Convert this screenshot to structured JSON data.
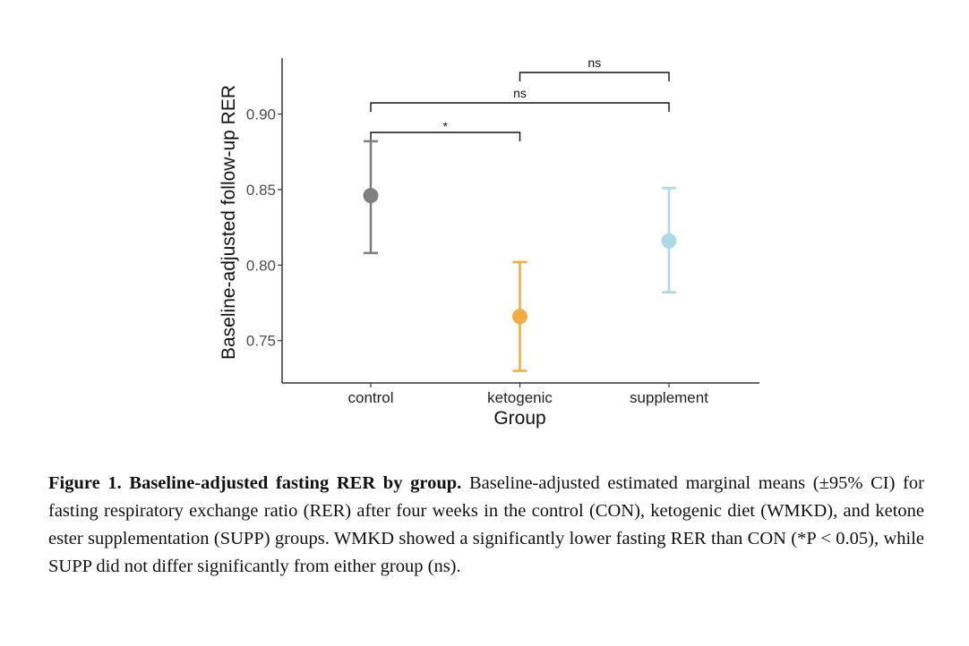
{
  "chart_data": {
    "type": "scatter",
    "subtype": "point-errorbar",
    "xlabel": "Group",
    "ylabel": "Baseline-adjusted follow-up RER",
    "categories": [
      "control",
      "ketogenic",
      "supplement"
    ],
    "series": [
      {
        "name": "control",
        "mean": 0.846,
        "ci_low": 0.808,
        "ci_high": 0.882,
        "color": "#808080"
      },
      {
        "name": "ketogenic",
        "mean": 0.766,
        "ci_low": 0.73,
        "ci_high": 0.802,
        "color": "#F0AD45"
      },
      {
        "name": "supplement",
        "mean": 0.816,
        "ci_low": 0.782,
        "ci_high": 0.851,
        "color": "#ADD8E6"
      }
    ],
    "yticks": [
      0.75,
      0.8,
      0.85,
      0.9
    ],
    "ytick_labels": [
      "0.75",
      "0.80",
      "0.85",
      "0.90"
    ],
    "ylim": [
      0.722,
      0.937
    ],
    "grid": false,
    "comparisons": [
      {
        "from": "control",
        "to": "ketogenic",
        "label": "*",
        "level": 1
      },
      {
        "from": "control",
        "to": "supplement",
        "label": "ns",
        "level": 2
      },
      {
        "from": "ketogenic",
        "to": "supplement",
        "label": "ns",
        "level": 3
      }
    ]
  },
  "caption": {
    "title": "Figure 1. Baseline-adjusted fasting RER by group.",
    "body": " Baseline-adjusted estimated marginal means (±95% CI) for fasting respiratory exchange ratio (RER) after four weeks in the control (CON), ketogenic diet (WMKD), and ketone ester supplementation (SUPP) groups. WMKD showed a significantly lower fasting RER than CON (*P < 0.05), while SUPP did not differ significantly from either group (ns)."
  }
}
